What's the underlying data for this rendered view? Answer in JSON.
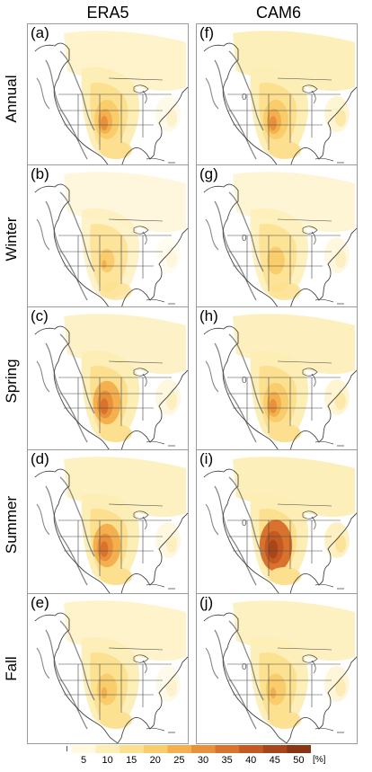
{
  "columns": [
    "ERA5",
    "CAM6"
  ],
  "rows": [
    "Annual",
    "Winter",
    "Spring",
    "Summer",
    "Fall"
  ],
  "panels": [
    {
      "label": "(a)",
      "contour_label": ""
    },
    {
      "label": "(f)",
      "contour_label": "0"
    },
    {
      "label": "(b)",
      "contour_label": ""
    },
    {
      "label": "(g)",
      "contour_label": "0"
    },
    {
      "label": "(c)",
      "contour_label": ""
    },
    {
      "label": "(h)",
      "contour_label": "0"
    },
    {
      "label": "(d)",
      "contour_label": ""
    },
    {
      "label": "(i)",
      "contour_label": "0"
    },
    {
      "label": "(e)",
      "contour_label": ""
    },
    {
      "label": "(j)",
      "contour_label": "0"
    }
  ],
  "colorbar": {
    "ticks": [
      "5",
      "10",
      "15",
      "20",
      "25",
      "30",
      "35",
      "40",
      "45",
      "50"
    ],
    "unit": "[%]",
    "colors": [
      "#fef9e0",
      "#fdeeb5",
      "#fce08f",
      "#f9cd6c",
      "#f4b04f",
      "#e8903b",
      "#d9722c",
      "#c45a22",
      "#a9451b",
      "#8a3414"
    ]
  }
}
